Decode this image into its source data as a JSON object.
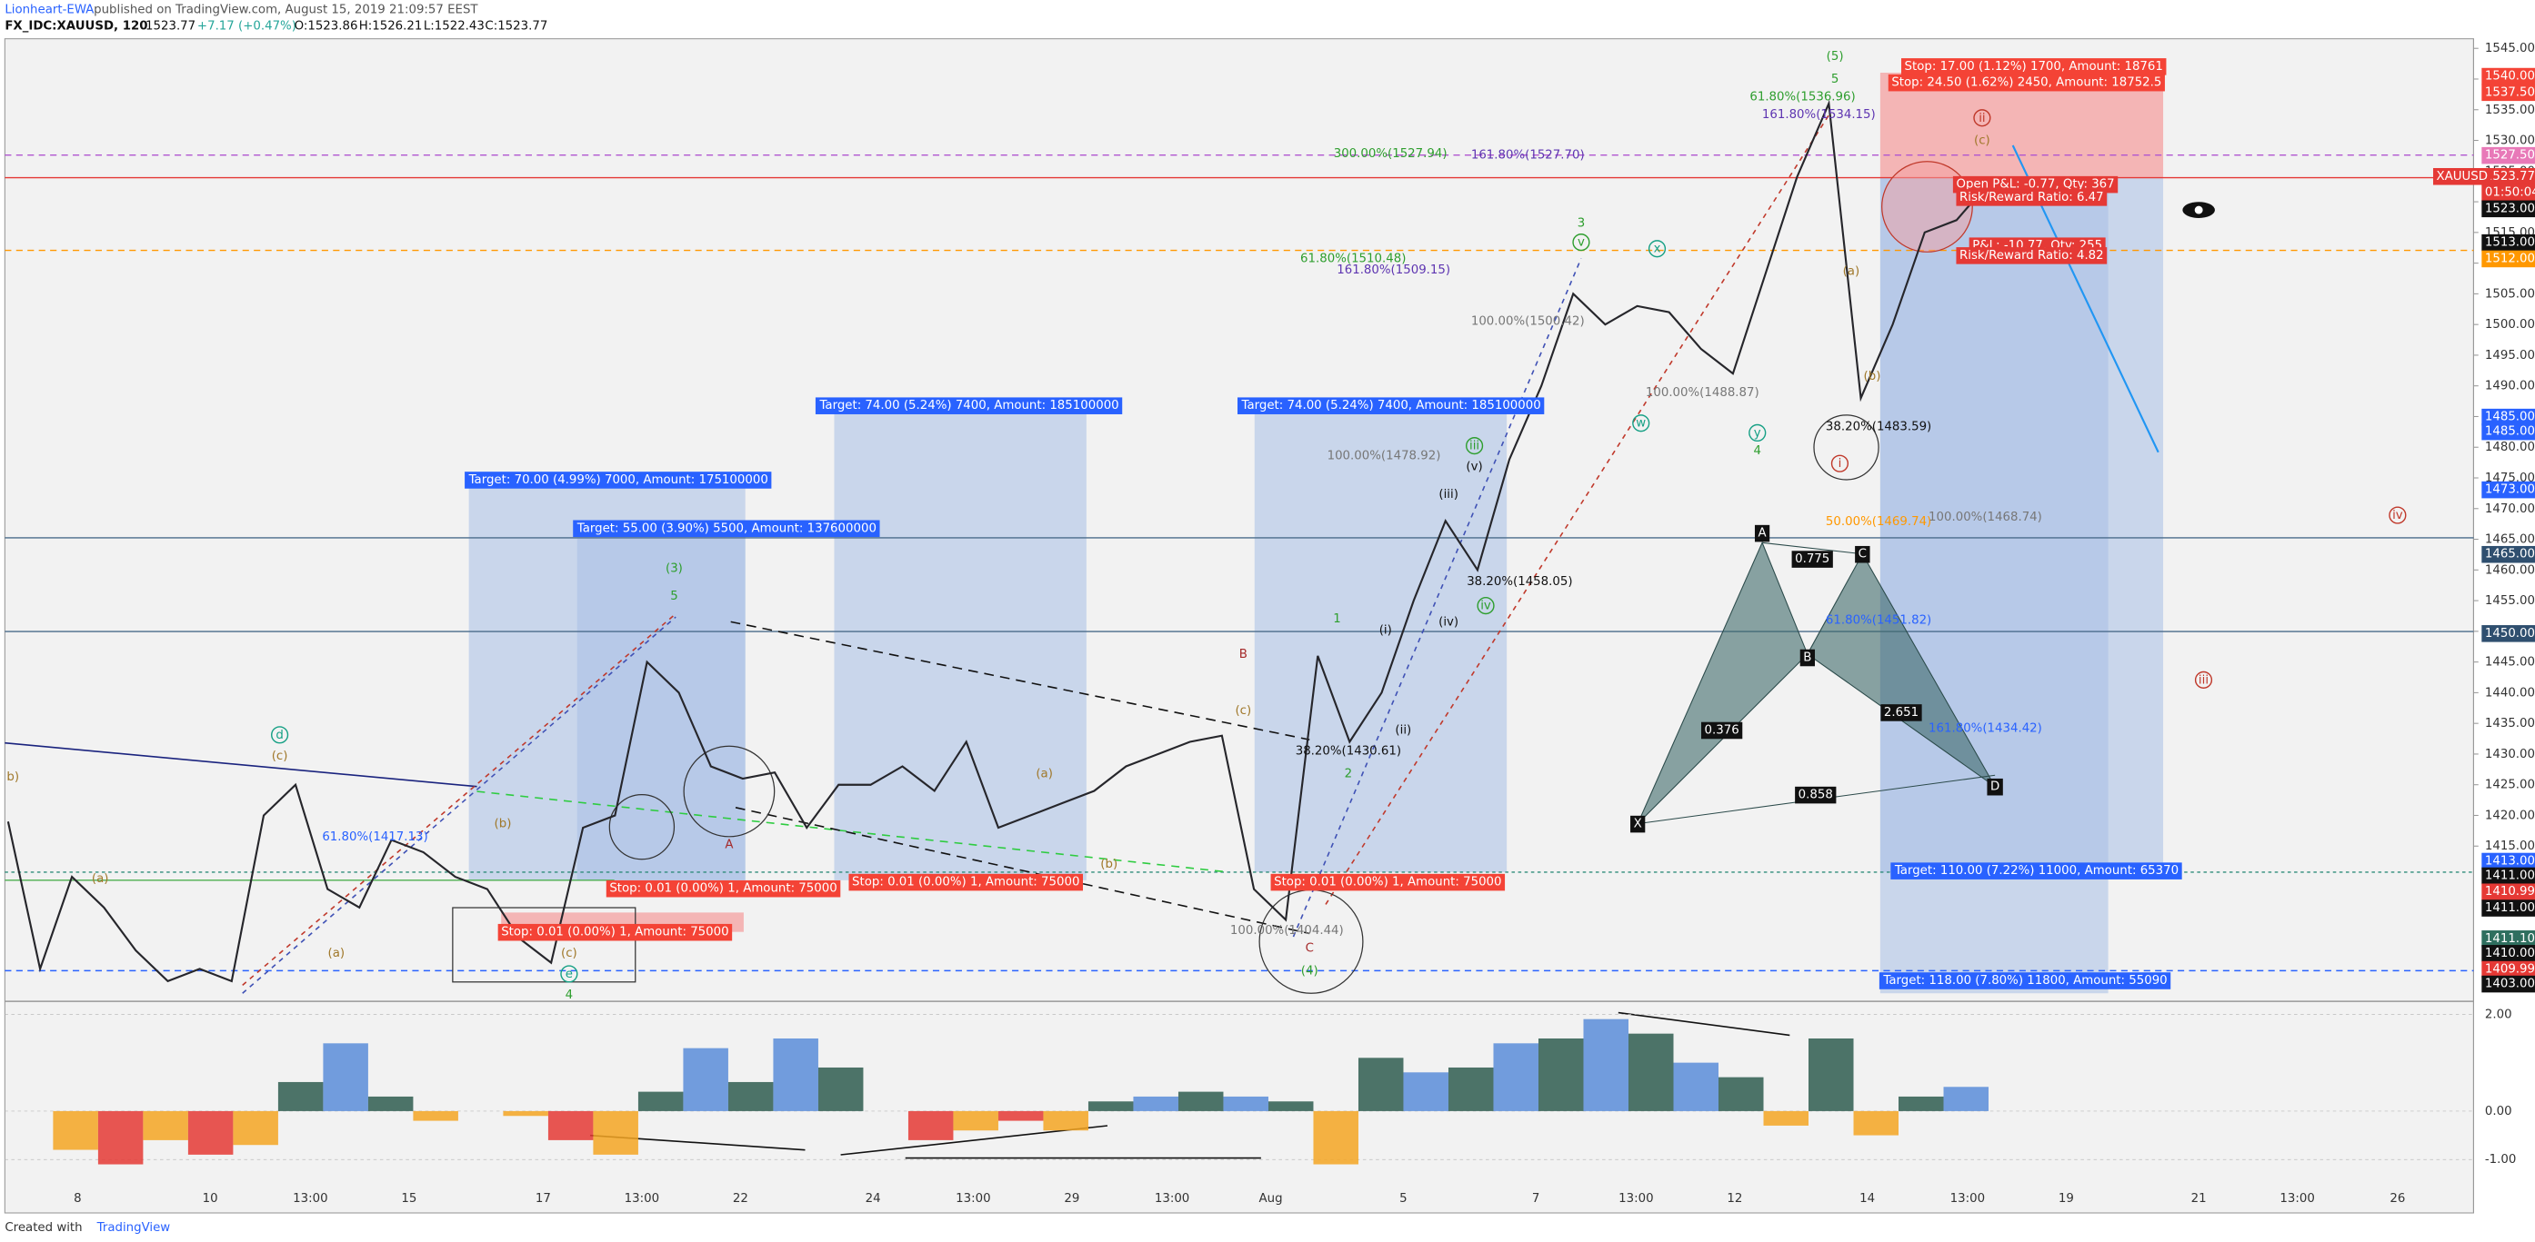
{
  "header": {
    "author": "Lionheart-EWA",
    "published": "published on TradingView.com, August 15, 2019 21:09:57 EEST",
    "symbol": "FX_IDC:XAUUSD, 120",
    "last": "1523.77",
    "change": "+7.17 (+0.47%)",
    "open": "O:1523.86",
    "high": "H:1526.21",
    "low": "L:1522.43",
    "close": "C:1523.77"
  },
  "chart_data": {
    "type": "line",
    "color": "#26262b",
    "values": [
      1419,
      1395,
      1410,
      1405,
      1398,
      1393,
      1395,
      1393,
      1420,
      1425,
      1408,
      1405,
      1416,
      1414,
      1410,
      1408,
      1400,
      1396,
      1418,
      1420,
      1445,
      1440,
      1428,
      1426,
      1427,
      1418,
      1425,
      1425,
      1428,
      1424,
      1432,
      1418,
      1420,
      1422,
      1424,
      1428,
      1430,
      1432,
      1433,
      1408,
      1403,
      1446,
      1432,
      1440,
      1455,
      1468,
      1460,
      1478,
      1490,
      1505,
      1500,
      1503,
      1502,
      1496,
      1492,
      1508,
      1524,
      1536,
      1488,
      1500,
      1515,
      1517,
      1523
    ],
    "ylim": [
      1389.7,
      1546.3
    ],
    "yticks": [
      {
        "value": 1545,
        "label": "1545.00"
      },
      {
        "value": 1540,
        "label": "1540.00"
      },
      {
        "value": 1535,
        "label": "1535.00"
      },
      {
        "value": 1530,
        "label": "1530.00"
      },
      {
        "value": 1525,
        "label": "1525.00"
      },
      {
        "value": 1520,
        "label": "1520.00"
      },
      {
        "value": 1515,
        "label": "1515.00"
      },
      {
        "value": 1510,
        "label": "1510.00"
      },
      {
        "value": 1505,
        "label": "1505.00"
      },
      {
        "value": 1500,
        "label": "1500.00"
      },
      {
        "value": 1495,
        "label": "1495.00"
      },
      {
        "value": 1490,
        "label": "1490.00"
      },
      {
        "value": 1485,
        "label": "1485.00"
      },
      {
        "value": 1480,
        "label": "1480.00"
      },
      {
        "value": 1475,
        "label": "1475.00"
      },
      {
        "value": 1470,
        "label": "1470.00"
      },
      {
        "value": 1465,
        "label": "1465.00"
      },
      {
        "value": 1460,
        "label": "1460.00"
      },
      {
        "value": 1455,
        "label": "1455.00"
      },
      {
        "value": 1450,
        "label": "1450.00"
      },
      {
        "value": 1445,
        "label": "1445.00"
      },
      {
        "value": 1440,
        "label": "1440.00"
      },
      {
        "value": 1435,
        "label": "1435.00"
      },
      {
        "value": 1430,
        "label": "1430.00"
      },
      {
        "value": 1425,
        "label": "1425.00"
      },
      {
        "value": 1420,
        "label": "1420.00"
      },
      {
        "value": 1415,
        "label": "1415.00"
      }
    ]
  },
  "oscillator": {
    "type": "bar",
    "values": [
      0,
      -0.8,
      -1.1,
      -0.6,
      -0.9,
      -0.7,
      0.6,
      1.4,
      0.3,
      -0.2,
      0,
      -0.1,
      -0.6,
      -0.9,
      0.4,
      1.3,
      0.6,
      1.5,
      0.9,
      0,
      -0.6,
      -0.4,
      -0.2,
      -0.4,
      0.2,
      0.3,
      0.4,
      0.3,
      0.2,
      -1.1,
      1.1,
      0.8,
      0.9,
      1.4,
      1.5,
      1.9,
      1.6,
      1.0,
      0.7,
      -0.3,
      1.5,
      -0.5,
      0.3,
      0.5
    ],
    "ylim": [
      -2.07,
      2.2
    ],
    "yticks": [
      {
        "value": 2,
        "label": "2.00"
      },
      {
        "value": 0,
        "label": "0.00"
      },
      {
        "value": -1,
        "label": "-1.00"
      }
    ]
  },
  "time_labels": [
    "8",
    "10",
    "13:00",
    "15",
    "17",
    "13:00",
    "22",
    "24",
    "13:00",
    "29",
    "13:00",
    "Aug",
    "5",
    "7",
    "13:00",
    "12",
    "14",
    "13:00",
    "19",
    "21",
    "13:00",
    "26"
  ],
  "symbol_tag": "XAUUSD",
  "price_boxes": [
    "1540.00",
    "1537.50",
    "1527.50",
    "1523.77",
    "01:50:04",
    "1523.00",
    "1513.00",
    "1512.00",
    "1485.00",
    "1485.00",
    "1473.00",
    "1465.00",
    "1450.00",
    "1413.00",
    "1411.00",
    "1410.99",
    "1411.00",
    "1411.10",
    "1410.00",
    "1409.99",
    "1403.00"
  ],
  "targets": [
    "Target: 70.00 (4.99%) 7000, Amount: 175100000",
    "Target: 55.00 (3.90%) 5500, Amount: 137600000",
    "Target: 74.00 (5.24%) 7400, Amount: 185100000",
    "Target: 74.00 (5.24%) 7400, Amount: 185100000",
    "Target: 110.00 (7.22%) 11000, Amount: 65370",
    "Target: 118.00 (7.80%) 11800, Amount: 55090"
  ],
  "stops": [
    "Stop: 17.00 (1.12%) 1700, Amount: 18761",
    "Stop: 24.50 (1.62%) 2450, Amount: 18752.5",
    "Stop: 0.01 (0.00%) 1, Amount: 75000",
    "Stop: 0.01 (0.00%) 1, Amount: 75000",
    "Stop: 0.01 (0.00%) 1, Amount: 75000",
    "Stop: 0.01 (0.00%) 1, Amount: 75000"
  ],
  "pnl": [
    "Open P&L: -0.77, Qty: 367",
    "Risk/Reward Ratio: 6.47",
    "P&L: -10.77, Qty: 255",
    "Risk/Reward Ratio: 4.82"
  ],
  "waves": [
    "(5)",
    "5",
    "(3)",
    "5",
    "3",
    "4",
    "(4)",
    "4",
    "1",
    "2",
    "B",
    "C",
    "A",
    "(a)",
    "(b)",
    "(c)",
    "(c)",
    "(a)",
    "(b)",
    "(a)",
    "(c)",
    "(a)",
    "(b)",
    "(c)",
    "(iii)",
    "(v)",
    "(i)",
    "(ii)",
    "(iv)",
    "b)"
  ],
  "circled": [
    "iii",
    "i",
    "ii",
    "iii",
    "iv",
    "x",
    "w",
    "y",
    "v",
    "iv",
    "d",
    "e"
  ],
  "pattern": [
    "X",
    "A",
    "B",
    "C",
    "D",
    "0.775",
    "0.376",
    "2.651",
    "0.858"
  ],
  "fibs": [
    "61.80%(1536.96)",
    "161.80%(1534.15)",
    "300.00%(1527.94)",
    "161.80%(1527.70)",
    "61.80%(1510.48)",
    "161.80%(1509.15)",
    "100.00%(1500.42)",
    "100.00%(1488.87)",
    "38.20%(1483.59)",
    "100.00%(1478.92)",
    "50.00%(1469.74)",
    "100.00%(1468.74)",
    "38.20%(1458.05)",
    "61.80%(1451.82)",
    "161.80%(1434.42)",
    "38.20%(1430.61)",
    "61.80%(1417.13)",
    "100.00%(1404.44)"
  ],
  "footer": {
    "created": "Created with",
    "brand": "TradingView"
  }
}
